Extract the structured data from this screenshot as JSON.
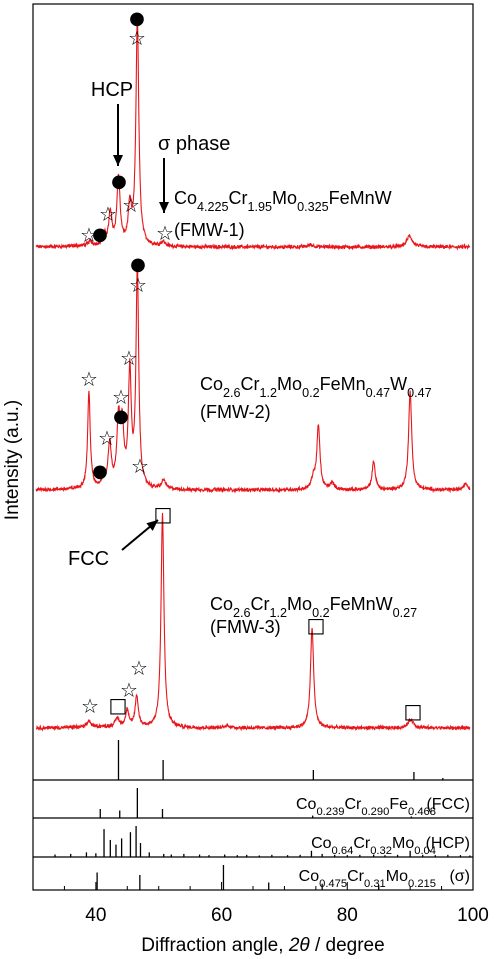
{
  "chart_data": {
    "type": "line",
    "xlabel": "Diffraction angle, 2θ / degree",
    "ylabel": "Intensity (a.u.)",
    "xlim": [
      30,
      100
    ],
    "xticks": [
      40,
      60,
      80,
      100
    ],
    "series": [
      {
        "name": "FMW-1",
        "composition": [
          "Co",
          "4.225",
          "Cr",
          "1.95",
          "Mo",
          "0.325",
          "FeMnW"
        ],
        "id_label": "(FMW-1)",
        "color": "#e8161b",
        "baseline": 1.0,
        "peaks": [
          {
            "x": 39.1,
            "h": 0.02,
            "w": 0.3
          },
          {
            "x": 41.4,
            "h": 0.04,
            "w": 0.3
          },
          {
            "x": 42.3,
            "h": 0.14,
            "w": 0.3
          },
          {
            "x": 43.6,
            "h": 0.3,
            "w": 0.3
          },
          {
            "x": 45.4,
            "h": 0.16,
            "w": 0.3
          },
          {
            "x": 46.6,
            "h": 1.0,
            "w": 0.28
          },
          {
            "x": 50.7,
            "h": 0.02,
            "w": 0.4
          },
          {
            "x": 74.2,
            "h": 0.01,
            "w": 0.5
          },
          {
            "x": 89.9,
            "h": 0.05,
            "w": 0.5
          }
        ]
      },
      {
        "name": "FMW-2",
        "composition": [
          "Co",
          "2.6",
          "Cr",
          "1.2",
          "Mo",
          "0.2",
          "FeMn",
          "0.47",
          "W",
          "0.47"
        ],
        "id_label": "(FMW-2)",
        "color": "#e8161b",
        "baseline": 1.0,
        "peaks": [
          {
            "x": 38.9,
            "h": 0.44,
            "w": 0.25
          },
          {
            "x": 41.2,
            "h": 0.04,
            "w": 0.3
          },
          {
            "x": 42.2,
            "h": 0.2,
            "w": 0.3
          },
          {
            "x": 43.6,
            "h": 0.3,
            "w": 0.3
          },
          {
            "x": 44.2,
            "h": 0.26,
            "w": 0.3
          },
          {
            "x": 45.4,
            "h": 0.52,
            "w": 0.28
          },
          {
            "x": 46.6,
            "h": 1.0,
            "w": 0.26
          },
          {
            "x": 50.8,
            "h": 0.04,
            "w": 0.4
          },
          {
            "x": 74.6,
            "h": 0.05,
            "w": 0.35
          },
          {
            "x": 75.4,
            "h": 0.29,
            "w": 0.3
          },
          {
            "x": 77.6,
            "h": 0.03,
            "w": 0.4
          },
          {
            "x": 84.2,
            "h": 0.13,
            "w": 0.3
          },
          {
            "x": 90.0,
            "h": 0.45,
            "w": 0.3
          },
          {
            "x": 98.8,
            "h": 0.03,
            "w": 0.4
          }
        ]
      },
      {
        "name": "FMW-3",
        "composition": [
          "Co",
          "2.6",
          "Cr",
          "1.2",
          "Mo",
          "0.2",
          "FeMnW",
          "0.27"
        ],
        "id_label": "(FMW-3)",
        "color": "#e8161b",
        "baseline": 1.0,
        "peaks": [
          {
            "x": 38.9,
            "h": 0.03,
            "w": 0.3
          },
          {
            "x": 43.4,
            "h": 0.04,
            "w": 0.35
          },
          {
            "x": 45.0,
            "h": 0.08,
            "w": 0.3
          },
          {
            "x": 46.5,
            "h": 0.14,
            "w": 0.3
          },
          {
            "x": 50.6,
            "h": 1.0,
            "w": 0.28
          },
          {
            "x": 61.0,
            "h": 0.01,
            "w": 0.6
          },
          {
            "x": 74.4,
            "h": 0.47,
            "w": 0.3
          },
          {
            "x": 90.1,
            "h": 0.04,
            "w": 0.5
          }
        ]
      }
    ],
    "reference_patterns": [
      {
        "name": "",
        "sticks": [
          {
            "x": 43.6,
            "h": 1.0
          },
          {
            "x": 50.7,
            "h": 0.5
          },
          {
            "x": 74.6,
            "h": 0.25
          },
          {
            "x": 90.6,
            "h": 0.2
          },
          {
            "x": 95.2,
            "h": 0.05
          }
        ]
      },
      {
        "name": "FCC",
        "composition": [
          "Co",
          "0.239",
          "Cr",
          "0.290",
          "Fe",
          "0.468"
        ],
        "phase_label": "(FCC)",
        "sticks": [
          {
            "x": 40.7,
            "h": 0.3
          },
          {
            "x": 43.8,
            "h": 0.25
          },
          {
            "x": 46.6,
            "h": 1.0
          },
          {
            "x": 50.6,
            "h": 0.3
          },
          {
            "x": 74.5,
            "h": 0.08
          },
          {
            "x": 90.2,
            "h": 0.05
          }
        ]
      },
      {
        "name": "HCP",
        "composition": [
          "Co",
          "0.64",
          "Cr",
          "0.32",
          "Mo",
          "0.04"
        ],
        "phase_label": "(HCP)",
        "sticks": [
          {
            "x": 33.5,
            "h": 0.08
          },
          {
            "x": 36.0,
            "h": 0.1
          },
          {
            "x": 38.5,
            "h": 0.15
          },
          {
            "x": 40.0,
            "h": 0.12
          },
          {
            "x": 41.3,
            "h": 0.9
          },
          {
            "x": 42.3,
            "h": 0.55
          },
          {
            "x": 43.2,
            "h": 0.4
          },
          {
            "x": 44.1,
            "h": 0.6
          },
          {
            "x": 45.5,
            "h": 0.8
          },
          {
            "x": 46.4,
            "h": 1.0
          },
          {
            "x": 47.1,
            "h": 0.45
          },
          {
            "x": 48.5,
            "h": 0.15
          },
          {
            "x": 50.8,
            "h": 0.1
          },
          {
            "x": 52.0,
            "h": 0.08
          },
          {
            "x": 54.0,
            "h": 0.1
          },
          {
            "x": 56.5,
            "h": 0.08
          },
          {
            "x": 58.0,
            "h": 0.06
          },
          {
            "x": 60.5,
            "h": 0.08
          },
          {
            "x": 62.5,
            "h": 0.06
          },
          {
            "x": 64.0,
            "h": 0.07
          },
          {
            "x": 66.0,
            "h": 0.05
          },
          {
            "x": 68.0,
            "h": 0.07
          },
          {
            "x": 70.5,
            "h": 0.06
          },
          {
            "x": 72.5,
            "h": 0.07
          },
          {
            "x": 74.3,
            "h": 0.2
          },
          {
            "x": 76.0,
            "h": 0.1
          },
          {
            "x": 78.0,
            "h": 0.07
          },
          {
            "x": 80.0,
            "h": 0.06
          },
          {
            "x": 82.0,
            "h": 0.07
          },
          {
            "x": 84.2,
            "h": 0.08
          },
          {
            "x": 86.0,
            "h": 0.06
          },
          {
            "x": 88.0,
            "h": 0.07
          },
          {
            "x": 90.0,
            "h": 0.2
          },
          {
            "x": 92.0,
            "h": 0.07
          },
          {
            "x": 94.0,
            "h": 0.06
          },
          {
            "x": 96.0,
            "h": 0.07
          },
          {
            "x": 98.0,
            "h": 0.06
          },
          {
            "x": 99.5,
            "h": 0.05
          }
        ]
      },
      {
        "name": "sigma",
        "composition": [
          "Co",
          "0.475",
          "Cr",
          "0.31",
          "Mo",
          "0.215"
        ],
        "phase_label": "(σ)",
        "sticks": [
          {
            "x": 40.2,
            "h": 0.7
          },
          {
            "x": 47.0,
            "h": 0.6
          },
          {
            "x": 60.3,
            "h": 1.0
          },
          {
            "x": 67.5,
            "h": 0.3
          },
          {
            "x": 76.0,
            "h": 0.25
          },
          {
            "x": 85.0,
            "h": 0.2
          }
        ]
      }
    ],
    "annotations": [
      {
        "text": "HCP",
        "type": "arrow-label"
      },
      {
        "text": "σ phase",
        "type": "arrow-label"
      },
      {
        "text": "FCC",
        "type": "arrow-label"
      }
    ],
    "markers": {
      "star": "☆",
      "circle": "●",
      "square": "□"
    },
    "grid": false
  }
}
